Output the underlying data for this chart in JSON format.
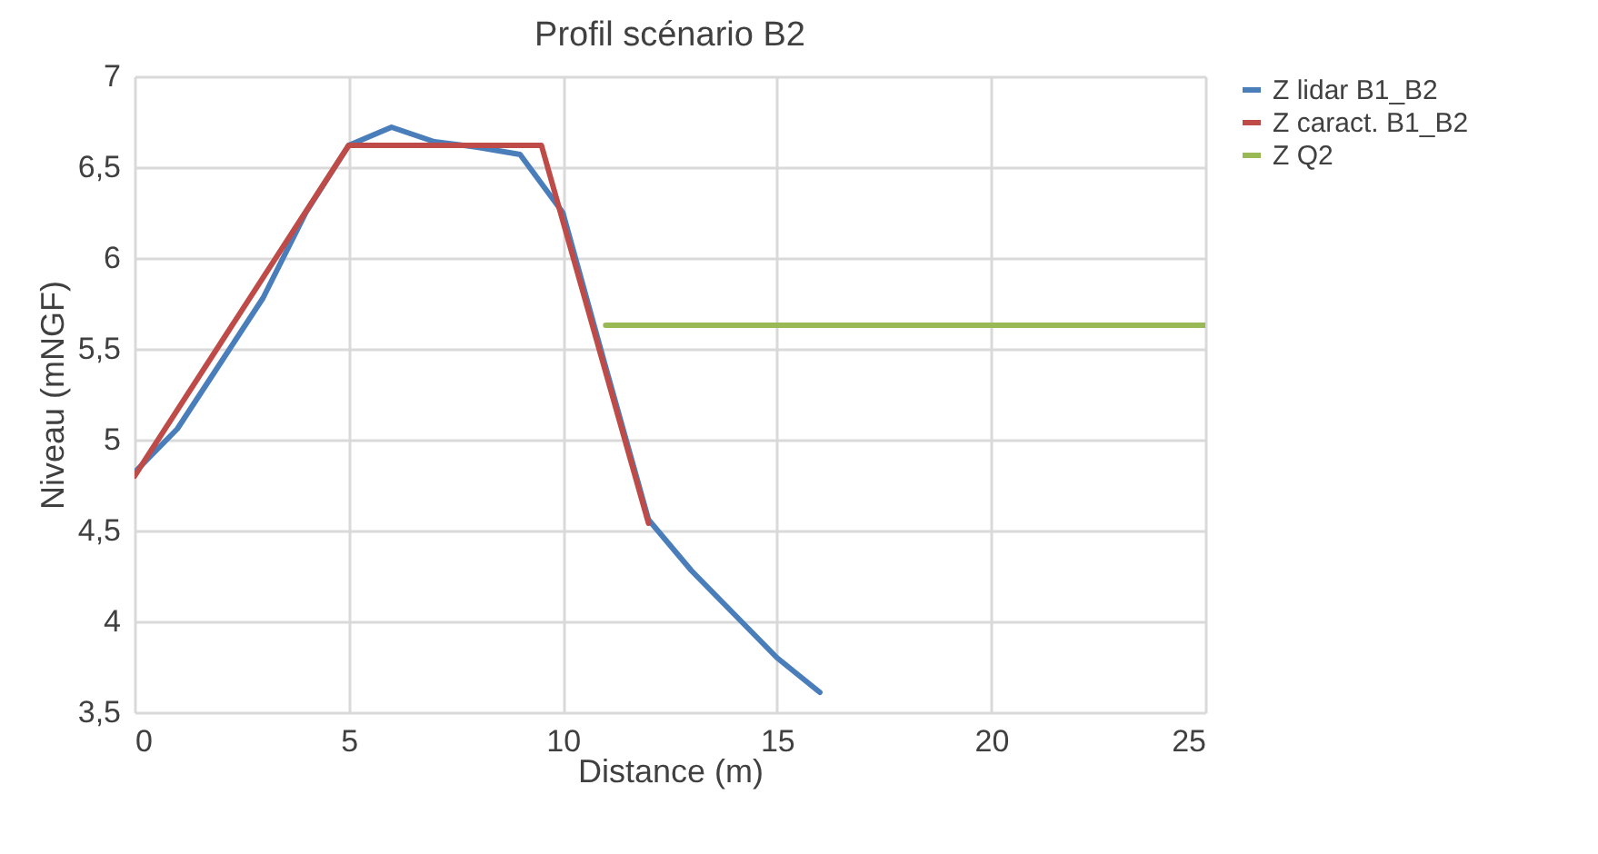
{
  "chart_data": {
    "type": "line",
    "title": "Profil scénario B2",
    "xlabel": "Distance (m)",
    "ylabel": "Niveau (mNGF)",
    "xlim": [
      0,
      25
    ],
    "xticks": [
      0,
      5,
      10,
      15,
      20,
      25
    ],
    "ylim": [
      3.5,
      7
    ],
    "yticks": [
      {
        "value": 3.5,
        "label": "3,5"
      },
      {
        "value": 4,
        "label": "4"
      },
      {
        "value": 4.5,
        "label": "4,5"
      },
      {
        "value": 5,
        "label": "5"
      },
      {
        "value": 5.5,
        "label": "5,5"
      },
      {
        "value": 6,
        "label": "6"
      },
      {
        "value": 6.5,
        "label": "6,5"
      },
      {
        "value": 7,
        "label": "7"
      }
    ],
    "grid": true,
    "legend": "right",
    "marker": "none",
    "line_style": "solid",
    "series": [
      {
        "name": "Z lidar B1_B2",
        "color": "#4a7ebb",
        "x": [
          0,
          1,
          2,
          3,
          4,
          5,
          6,
          7,
          8,
          9,
          10,
          11,
          12,
          13,
          14,
          15,
          16
        ],
        "values": [
          4.82,
          5.06,
          5.42,
          5.78,
          6.25,
          6.62,
          6.72,
          6.64,
          6.61,
          6.57,
          6.25,
          5.4,
          4.56,
          4.28,
          4.04,
          3.8,
          3.61
        ]
      },
      {
        "name": "Z caract. B1_B2",
        "color": "#be4b48",
        "x": [
          0,
          5,
          9.5,
          12
        ],
        "values": [
          4.8,
          6.62,
          6.62,
          4.54
        ]
      },
      {
        "name": "Z Q2",
        "color": "#98b954",
        "x": [
          11,
          25
        ],
        "values": [
          5.63,
          5.63
        ]
      }
    ]
  }
}
